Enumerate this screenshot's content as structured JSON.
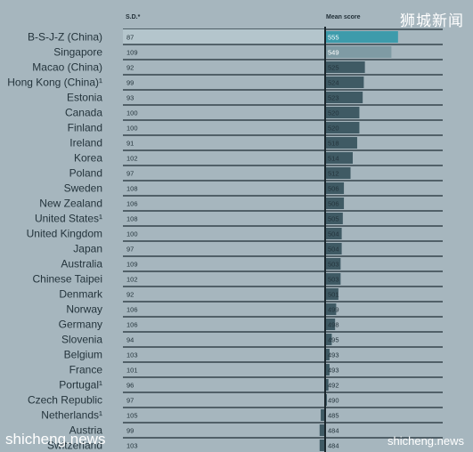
{
  "watermarks": {
    "top_right": "狮城新闻",
    "bottom_left": "shicheng.news",
    "bottom_right": "shicheng.news"
  },
  "colors": {
    "background": "#a6b6be",
    "bar_top": "#3d9bab",
    "bar_dark": "#3f5a64",
    "bar_light": "#7f9ba4",
    "row_line": "#1f2d35"
  },
  "chart_data": {
    "type": "bar",
    "orientation": "horizontal",
    "column_headers": {
      "sd": "S.D.*",
      "mean": "Mean score"
    },
    "categories": [
      "B-S-J-Z (China)",
      "Singapore",
      "Macao (China)",
      "Hong Kong (China)¹",
      "Estonia",
      "Canada",
      "Finland",
      "Ireland",
      "Korea",
      "Poland",
      "Sweden",
      "New Zealand",
      "United States¹",
      "United Kingdom",
      "Japan",
      "Australia",
      "Chinese Taipei",
      "Denmark",
      "Norway",
      "Germany",
      "Slovenia",
      "Belgium",
      "France",
      "Portugal¹",
      "Czech Republic",
      "Netherlands¹",
      "Austria",
      "Switzerland"
    ],
    "sd": [
      87,
      109,
      92,
      99,
      93,
      100,
      100,
      91,
      102,
      97,
      108,
      106,
      108,
      100,
      97,
      109,
      102,
      92,
      106,
      106,
      94,
      103,
      101,
      96,
      97,
      105,
      99,
      103
    ],
    "values": [
      555,
      549,
      525,
      524,
      523,
      520,
      520,
      518,
      514,
      512,
      506,
      506,
      505,
      504,
      504,
      503,
      503,
      501,
      499,
      498,
      495,
      493,
      493,
      492,
      490,
      485,
      484,
      484
    ],
    "baseline": 489
  }
}
